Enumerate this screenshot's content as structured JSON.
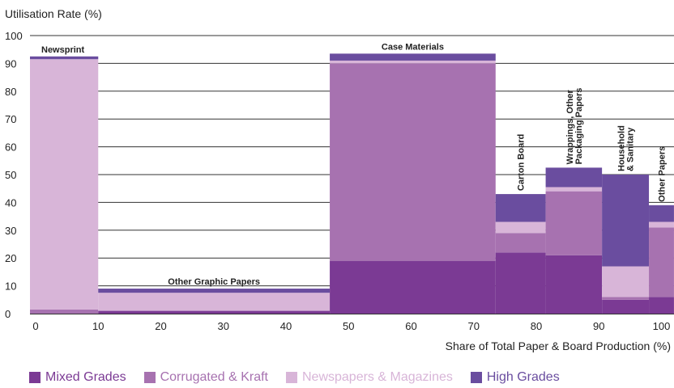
{
  "chart_data": {
    "type": "bar",
    "ylabel": "Utilisation Rate (%)",
    "xlabel": "Share of Total Paper & Board Production (%)",
    "ylim": [
      0,
      100
    ],
    "xlim": [
      -4,
      102
    ],
    "yticks": [
      0,
      10,
      20,
      30,
      40,
      50,
      60,
      70,
      80,
      90,
      100
    ],
    "xticks": [
      0,
      10,
      20,
      30,
      40,
      50,
      60,
      70,
      80,
      90,
      100
    ],
    "grid": true,
    "legend_position": "bottom",
    "series": [
      {
        "key": "mixed",
        "name": "Mixed Grades",
        "color": "#7b3a94"
      },
      {
        "key": "corrugated",
        "name": "Corrugated & Kraft",
        "color": "#a772b0"
      },
      {
        "key": "newspapers",
        "name": "Newspapers & Magazines",
        "color": "#d8b5d8"
      },
      {
        "key": "high",
        "name": "High Grades",
        "color": "#6a4d9f"
      }
    ],
    "categories": [
      {
        "name": "Newsprint",
        "x_start": -2,
        "x_end": 10,
        "label_orientation": "horizontal",
        "values": {
          "mixed": 0,
          "corrugated": 1.5,
          "newspapers": 90,
          "high": 1
        }
      },
      {
        "name": "Other Graphic Papers",
        "x_start": 10,
        "x_end": 47,
        "label_orientation": "horizontal",
        "values": {
          "mixed": 1,
          "corrugated": 0,
          "newspapers": 6.5,
          "high": 1.5
        }
      },
      {
        "name": "Case Materials",
        "x_start": 47,
        "x_end": 73.5,
        "label_orientation": "horizontal",
        "values": {
          "mixed": 19,
          "corrugated": 71,
          "newspapers": 1,
          "high": 2.5
        }
      },
      {
        "name": "Carton Board",
        "x_start": 73.5,
        "x_end": 81.5,
        "label_orientation": "vertical",
        "values": {
          "mixed": 22,
          "corrugated": 7,
          "newspapers": 4,
          "high": 10
        }
      },
      {
        "name": "Wrappings, Other\nPackaging Papers",
        "x_start": 81.5,
        "x_end": 90.5,
        "label_orientation": "vertical",
        "values": {
          "mixed": 21,
          "corrugated": 23,
          "newspapers": 1.5,
          "high": 7
        }
      },
      {
        "name": "Household\n& Sanitary",
        "x_start": 90.5,
        "x_end": 98,
        "label_orientation": "vertical",
        "values": {
          "mixed": 5,
          "corrugated": 1,
          "newspapers": 11,
          "high": 33
        }
      },
      {
        "name": "Other Papers",
        "x_start": 98,
        "x_end": 102,
        "label_orientation": "vertical",
        "values": {
          "mixed": 6,
          "corrugated": 25,
          "newspapers": 2,
          "high": 6
        }
      }
    ]
  }
}
